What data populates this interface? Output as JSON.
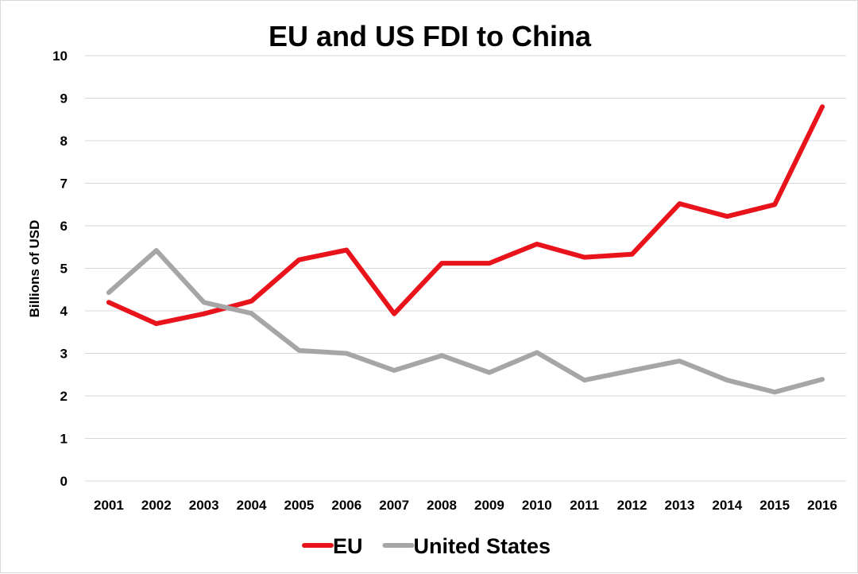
{
  "chart_data": {
    "type": "line",
    "title": "EU and US FDI to China",
    "xlabel": "",
    "ylabel": "Billions of USD",
    "ylim": [
      0,
      10
    ],
    "yticks": [
      "0",
      "1",
      "2",
      "3",
      "4",
      "5",
      "6",
      "7",
      "8",
      "9",
      "10"
    ],
    "categories": [
      "2001",
      "2002",
      "2003",
      "2004",
      "2005",
      "2006",
      "2007",
      "2008",
      "2009",
      "2010",
      "2011",
      "2012",
      "2013",
      "2014",
      "2015",
      "2016"
    ],
    "grid": true,
    "legend_position": "bottom",
    "series": [
      {
        "name": "EU",
        "color": "#e8131b",
        "values": [
          4.2,
          3.7,
          3.93,
          4.23,
          5.2,
          5.43,
          3.93,
          5.12,
          5.12,
          5.57,
          5.26,
          5.33,
          6.52,
          6.22,
          6.5,
          8.8
        ]
      },
      {
        "name": "United States",
        "color": "#a6a6a6",
        "values": [
          4.43,
          5.42,
          4.2,
          3.94,
          3.07,
          3.0,
          2.6,
          2.95,
          2.55,
          3.02,
          2.37,
          2.6,
          2.82,
          2.37,
          2.09,
          2.39
        ]
      }
    ]
  }
}
